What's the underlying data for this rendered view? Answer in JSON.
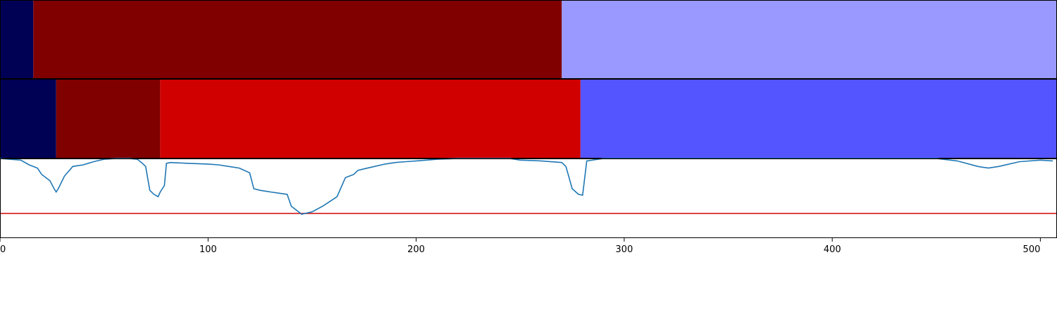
{
  "chart_data": {
    "type": "area",
    "panels": [
      {
        "kind": "segment-bar",
        "segments": [
          {
            "start": 0,
            "end": 16,
            "color": "#000055"
          },
          {
            "start": 16,
            "end": 270,
            "color": "#800000"
          },
          {
            "start": 270,
            "end": 508,
            "color": "#9999ff"
          }
        ]
      },
      {
        "kind": "segment-bar",
        "segments": [
          {
            "start": 0,
            "end": 27,
            "color": "#000055"
          },
          {
            "start": 27,
            "end": 77,
            "color": "#800000"
          },
          {
            "start": 77,
            "end": 279,
            "color": "#d00000"
          },
          {
            "start": 279,
            "end": 508,
            "color": "#5555ff"
          }
        ]
      },
      {
        "kind": "line",
        "ylim": [
          0,
          1
        ],
        "threshold": 0.31,
        "threshold_color": "#d62728",
        "line_color": "#1f77b4",
        "x": [
          0,
          10,
          14,
          18,
          20,
          24,
          26,
          27,
          28,
          31,
          35,
          40,
          45,
          50,
          56,
          62,
          66,
          68,
          70,
          72,
          74,
          76,
          77,
          79,
          80,
          82,
          90,
          100,
          105,
          110,
          115,
          120,
          122,
          125,
          130,
          138,
          140,
          145,
          150,
          155,
          158,
          162,
          166,
          170,
          172,
          175,
          180,
          185,
          190,
          195,
          200,
          205,
          210,
          220,
          230,
          245,
          250,
          260,
          270,
          272,
          275,
          278,
          280,
          282,
          290,
          300,
          350,
          400,
          450,
          460,
          470,
          475,
          480,
          490,
          500,
          506
        ],
        "y": [
          1.0,
          0.98,
          0.92,
          0.88,
          0.8,
          0.72,
          0.62,
          0.58,
          0.62,
          0.78,
          0.9,
          0.92,
          0.96,
          0.99,
          1.0,
          1.0,
          0.99,
          0.95,
          0.9,
          0.6,
          0.55,
          0.52,
          0.58,
          0.66,
          0.94,
          0.95,
          0.94,
          0.93,
          0.92,
          0.9,
          0.88,
          0.82,
          0.62,
          0.6,
          0.58,
          0.55,
          0.4,
          0.3,
          0.33,
          0.4,
          0.45,
          0.52,
          0.76,
          0.8,
          0.85,
          0.87,
          0.9,
          0.93,
          0.95,
          0.96,
          0.97,
          0.98,
          0.99,
          1.0,
          1.0,
          1.0,
          0.98,
          0.97,
          0.95,
          0.9,
          0.62,
          0.55,
          0.54,
          0.97,
          1.0,
          1.0,
          1.0,
          1.0,
          1.0,
          0.97,
          0.9,
          0.88,
          0.9,
          0.96,
          0.98,
          0.97
        ]
      }
    ],
    "xlim": [
      0,
      508
    ],
    "xticks": [
      0,
      100,
      200,
      300,
      400,
      500
    ],
    "xtick_labels": [
      "0",
      "100",
      "200",
      "300",
      "400",
      "500"
    ]
  }
}
